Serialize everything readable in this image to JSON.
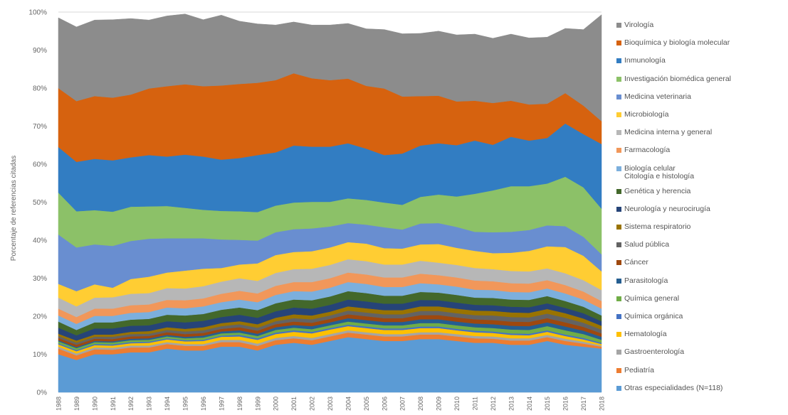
{
  "chart_data": {
    "type": "area",
    "stacked": true,
    "ylabel": "Porcentaje de referencias citadas",
    "ylim": [
      0,
      100
    ],
    "yticks": [
      "0%",
      "10%",
      "20%",
      "30%",
      "40%",
      "50%",
      "60%",
      "70%",
      "80%",
      "90%",
      "100%"
    ],
    "x": [
      "1988",
      "1989",
      "1990",
      "1991",
      "1992",
      "1993",
      "1994",
      "1995",
      "1996",
      "1997",
      "1998",
      "1999",
      "2000",
      "2001",
      "2002",
      "2003",
      "2004",
      "2005",
      "2006",
      "2007",
      "2008",
      "2009",
      "2010",
      "2011",
      "2012",
      "2013",
      "2014",
      "2015",
      "2016",
      "2017",
      "2018"
    ],
    "legend_position": "right",
    "grid": true,
    "series": [
      {
        "name": "Otras especialidades (N=118)",
        "color": "#5b9bd5",
        "values": [
          10,
          8.5,
          10,
          10,
          10.5,
          10.5,
          11.5,
          11,
          11,
          12,
          12,
          11,
          12.5,
          13,
          12.5,
          13.5,
          14.5,
          14,
          13.5,
          13.5,
          14,
          14,
          13.5,
          13,
          13,
          12.5,
          12.5,
          13.5,
          12.5,
          12,
          11.5
        ]
      },
      {
        "name": "Pediatría",
        "color": "#ed7d31",
        "values": [
          1.5,
          1.2,
          1.3,
          1.2,
          1.3,
          1.3,
          1.2,
          1.2,
          1.2,
          1.2,
          1.2,
          1.2,
          1.2,
          1.2,
          1.2,
          1.2,
          1.2,
          1.2,
          1.2,
          1.2,
          1.2,
          1.2,
          1.2,
          1.2,
          1.1,
          1.1,
          1.1,
          1,
          1,
          0.8,
          0.5
        ]
      },
      {
        "name": "Gastroenterología",
        "color": "#a5a5a5",
        "values": [
          0.5,
          0.5,
          0.5,
          0.5,
          0.5,
          0.5,
          0.5,
          0.5,
          0.5,
          0.6,
          0.6,
          0.6,
          0.6,
          0.6,
          0.6,
          0.6,
          0.6,
          0.6,
          0.6,
          0.6,
          0.6,
          0.6,
          0.6,
          0.6,
          0.6,
          0.6,
          0.6,
          0.6,
          0.6,
          0.5,
          0.3
        ]
      },
      {
        "name": "Hematología",
        "color": "#ffc000",
        "values": [
          0.6,
          0.6,
          0.6,
          0.6,
          0.6,
          0.7,
          0.7,
          0.7,
          0.8,
          0.8,
          0.9,
          1,
          1,
          1.1,
          1.2,
          1.2,
          1.1,
          1.1,
          1.1,
          1.1,
          1.1,
          1.1,
          1,
          1,
          0.9,
          0.9,
          0.8,
          0.8,
          0.7,
          0.6,
          0.4
        ]
      },
      {
        "name": "Química orgánica",
        "color": "#4472c4",
        "values": [
          0.3,
          0.3,
          0.3,
          0.3,
          0.3,
          0.3,
          0.3,
          0.3,
          0.3,
          0.3,
          0.4,
          0.4,
          0.4,
          0.4,
          0.4,
          0.4,
          0.4,
          0.4,
          0.4,
          0.4,
          0.4,
          0.4,
          0.4,
          0.4,
          0.4,
          0.4,
          0.4,
          0.4,
          0.4,
          0.4,
          0.3
        ]
      },
      {
        "name": "Química general",
        "color": "#70ad47",
        "values": [
          0.5,
          0.5,
          0.5,
          0.5,
          0.5,
          0.5,
          0.5,
          0.5,
          0.6,
          0.6,
          0.6,
          0.6,
          0.7,
          0.7,
          0.7,
          0.7,
          0.8,
          0.8,
          0.8,
          0.8,
          0.9,
          0.9,
          0.9,
          0.9,
          0.9,
          1,
          1,
          1.1,
          1.1,
          1,
          0.8
        ]
      },
      {
        "name": "Parasitología",
        "color": "#255e91",
        "values": [
          0.3,
          0.3,
          0.3,
          0.3,
          0.4,
          0.4,
          0.4,
          0.4,
          0.5,
          0.5,
          0.6,
          0.6,
          0.7,
          0.7,
          0.8,
          0.8,
          0.9,
          0.9,
          0.9,
          0.9,
          1,
          1,
          1,
          1,
          1,
          1,
          1,
          1,
          1,
          0.9,
          0.8
        ]
      },
      {
        "name": "Cáncer",
        "color": "#9e480e",
        "values": [
          0.6,
          0.6,
          0.6,
          0.6,
          0.6,
          0.6,
          0.7,
          0.7,
          0.7,
          0.7,
          0.8,
          0.8,
          0.8,
          0.9,
          0.9,
          0.9,
          1,
          1,
          1,
          1,
          1.1,
          1.1,
          1.1,
          1.1,
          1.1,
          1.1,
          1.1,
          1.1,
          1.1,
          1,
          0.9
        ]
      },
      {
        "name": "Salud pública",
        "color": "#636363",
        "values": [
          0.5,
          0.5,
          0.5,
          0.6,
          0.6,
          0.6,
          0.6,
          0.7,
          0.7,
          0.7,
          0.8,
          0.8,
          0.8,
          0.9,
          0.9,
          0.9,
          1,
          1,
          1,
          1,
          1.1,
          1.1,
          1.1,
          1.1,
          1.2,
          1.2,
          1.2,
          1.2,
          1.2,
          1.1,
          1
        ]
      },
      {
        "name": "Sistema respiratorio",
        "color": "#997300",
        "values": [
          0.6,
          0.6,
          0.6,
          0.6,
          0.6,
          0.7,
          0.7,
          0.7,
          0.8,
          0.8,
          0.8,
          0.9,
          0.9,
          1,
          1,
          1,
          1.1,
          1.1,
          1.1,
          1.1,
          1.2,
          1.2,
          1.2,
          1.2,
          1.2,
          1.2,
          1.2,
          1.2,
          1.2,
          1.1,
          1
        ]
      },
      {
        "name": "Neurología y neurocirugía",
        "color": "#264478",
        "values": [
          1.6,
          1.4,
          1.6,
          1.6,
          1.6,
          1.5,
          1.6,
          1.7,
          1.7,
          1.6,
          1.7,
          1.7,
          1.7,
          1.8,
          1.8,
          1.8,
          1.8,
          1.8,
          1.7,
          1.7,
          1.7,
          1.6,
          1.6,
          1.5,
          1.5,
          1.5,
          1.5,
          1.5,
          1.4,
          1.4,
          1.2
        ]
      },
      {
        "name": "Genética y herencia",
        "color": "#43682b",
        "values": [
          1.6,
          1.4,
          1.6,
          1.6,
          1.6,
          1.7,
          1.7,
          1.8,
          1.8,
          1.9,
          1.9,
          2,
          2.1,
          2.1,
          2.2,
          2.2,
          2.2,
          2.2,
          2.1,
          2.1,
          2.1,
          2,
          2,
          1.9,
          1.9,
          1.9,
          1.9,
          1.9,
          1.8,
          1.7,
          1.5
        ]
      },
      {
        "name": "Biología celular\nCitología e histología",
        "color": "#7cafdd",
        "values": [
          1.6,
          1.6,
          1.7,
          1.7,
          1.8,
          1.8,
          1.9,
          1.9,
          2,
          2,
          2.1,
          2.1,
          2.2,
          2.2,
          2.3,
          2.3,
          2.4,
          2.4,
          2.3,
          2.3,
          2.3,
          2.2,
          2.2,
          2.1,
          2.1,
          2,
          2,
          2,
          2,
          1.9,
          1.8
        ]
      },
      {
        "name": "Farmacología",
        "color": "#f1975a",
        "values": [
          1.8,
          1.8,
          1.9,
          1.9,
          2,
          2,
          2,
          2.1,
          2.1,
          2.2,
          2.3,
          2.3,
          2.4,
          2.4,
          2.5,
          2.5,
          2.5,
          2.5,
          2.5,
          2.5,
          2.5,
          2.4,
          2.4,
          2.4,
          2.3,
          2.3,
          2.3,
          2.2,
          2.2,
          2.1,
          2
        ]
      },
      {
        "name": "Medicina interna y general",
        "color": "#b7b7b7",
        "values": [
          2.9,
          2.8,
          2.9,
          3,
          3,
          3,
          3.1,
          3.1,
          3.2,
          3.2,
          3.3,
          3.3,
          3.4,
          3.4,
          3.5,
          3.5,
          3.5,
          3.5,
          3.4,
          3.4,
          3.4,
          3.3,
          3.3,
          3.3,
          3.2,
          3.2,
          3.2,
          3.1,
          3.1,
          3,
          2.9
        ]
      },
      {
        "name": "Microbiología",
        "color": "#ffcd33",
        "values": [
          3.6,
          4,
          3.5,
          2.5,
          3.9,
          4.3,
          4.1,
          4.7,
          4.6,
          3.6,
          3.6,
          4.6,
          4.7,
          4.5,
          4.6,
          4.6,
          4.5,
          4.6,
          4.3,
          4.2,
          4.3,
          4.9,
          4.5,
          4.5,
          4.2,
          4.8,
          5.4,
          5.8,
          6.9,
          6.4,
          4.9
        ]
      },
      {
        "name": "Medicina veterinaria",
        "color": "#698ed0",
        "values": [
          13,
          11.5,
          10.5,
          11,
          10,
          10,
          9,
          8.5,
          8,
          7.5,
          6.5,
          6,
          6,
          6,
          6,
          5.5,
          5,
          5,
          5.5,
          5,
          5.5,
          5.5,
          5.5,
          5,
          5.5,
          5.5,
          5.5,
          5.5,
          5.5,
          5,
          4.5
        ]
      },
      {
        "name": "Investigación biomédica general",
        "color": "#8cc168",
        "values": [
          11,
          9.5,
          9,
          9,
          9,
          8.5,
          8.5,
          8,
          7.5,
          7.5,
          7.5,
          7.5,
          7,
          7,
          7,
          6.5,
          6.5,
          6.5,
          6.5,
          6.5,
          7,
          7.5,
          8,
          10,
          11,
          12,
          11.5,
          11,
          13,
          13,
          12
        ]
      },
      {
        "name": "Inmunología",
        "color": "#327dc2",
        "values": [
          12,
          13,
          13.5,
          13.5,
          13,
          13.5,
          13,
          14,
          14,
          13.5,
          14,
          15,
          14,
          15,
          14.5,
          14.5,
          14.5,
          13.5,
          12.5,
          13.5,
          13.5,
          13.5,
          13.5,
          14,
          12,
          13,
          12,
          12,
          14,
          14,
          17
        ]
      },
      {
        "name": "Bioquímica y biología molecular",
        "color": "#d6620f",
        "values": [
          15.5,
          16,
          16.5,
          16.5,
          16.5,
          17.5,
          18.5,
          18.5,
          18.5,
          19.5,
          19.5,
          19,
          19,
          19,
          18,
          17.5,
          17,
          16.5,
          17.5,
          15,
          13,
          12.5,
          11.5,
          10.5,
          11,
          9.5,
          9.5,
          9,
          8,
          7.5,
          6
        ]
      },
      {
        "name": "Virología",
        "color": "#8c8c8c",
        "values": [
          18.5,
          19.5,
          20,
          20.5,
          20,
          18,
          18.5,
          18.5,
          17.5,
          18.5,
          16.5,
          15.5,
          14.5,
          13.5,
          14,
          14.5,
          14.5,
          15,
          15.5,
          16.5,
          16.5,
          17,
          17.5,
          17.5,
          17,
          17.5,
          17.5,
          17.5,
          17,
          20,
          28
        ]
      }
    ]
  }
}
